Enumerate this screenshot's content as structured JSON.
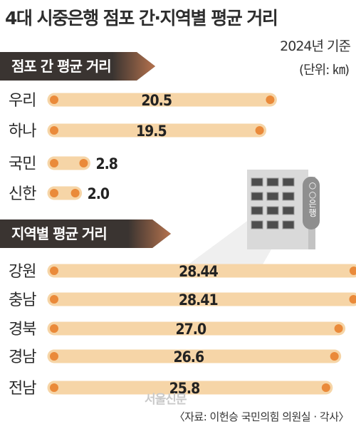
{
  "title": "4대 시중은행 점포 간·지역별 평균 거리",
  "year_note": "2024년 기준",
  "unit_note": "(단위: ㎞)",
  "watermark": "서울신문",
  "source": "〈자료: 이헌승 국민의힘 의원실 · 각사〉",
  "building": {
    "sign_label": "○○은행"
  },
  "colors": {
    "bar_fill": "#f6d5a7",
    "dot": "#ea8a3a",
    "banner": "#3a3431",
    "banner_accent": "#b5724d"
  },
  "chart_data": [
    {
      "type": "bar",
      "orientation": "horizontal",
      "title": "점포 간 평균 거리",
      "categories": [
        "우리",
        "하나",
        "국민",
        "신한"
      ],
      "values": [
        20.5,
        19.5,
        2.8,
        2.0
      ],
      "value_labels": [
        "20.5",
        "19.5",
        "2.8",
        "2.0"
      ]
    },
    {
      "type": "bar",
      "orientation": "horizontal",
      "title": "지역별 평균 거리",
      "categories": [
        "강원",
        "충남",
        "경북",
        "경남",
        "전남"
      ],
      "values": [
        28.44,
        28.41,
        27.0,
        26.6,
        25.8
      ],
      "value_labels": [
        "28.44",
        "28.41",
        "27.0",
        "26.6",
        "25.8"
      ]
    }
  ]
}
